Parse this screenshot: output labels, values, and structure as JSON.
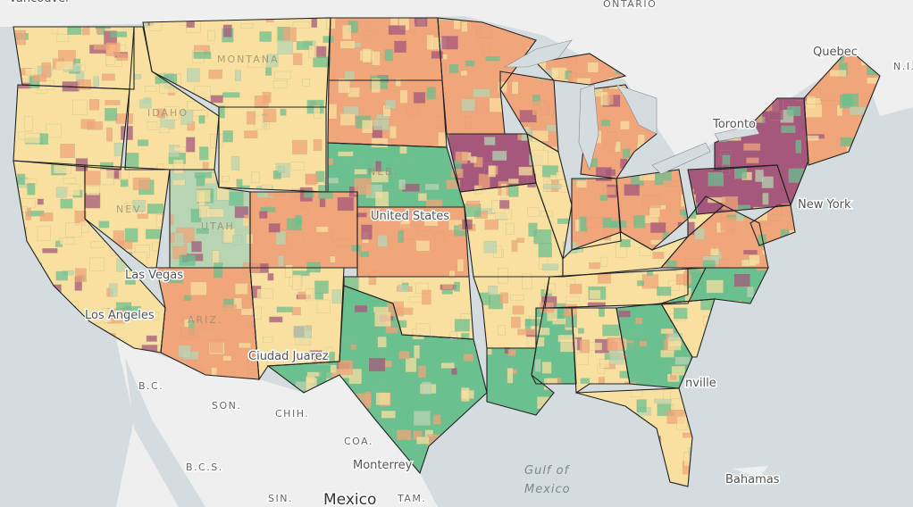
{
  "map": {
    "places": [
      "Vancouver",
      "ONTARIO",
      "Quebec",
      "N.I.",
      "Toronto",
      "New York",
      "Los Angeles",
      "Las Vegas",
      "Ciudad Juarez",
      "United States",
      "B.C.",
      "SON.",
      "CHIH.",
      "COA.",
      "Monterrey",
      "B.C.S.",
      "SIN.",
      "Mexico",
      "TAM.",
      "Gulf of",
      "Mexico",
      "Bahamas",
      "nville",
      "MONTANA",
      "UTAH",
      "NEB.",
      "NEV.",
      "ARIZ.",
      "IDAHO"
    ]
  }
}
